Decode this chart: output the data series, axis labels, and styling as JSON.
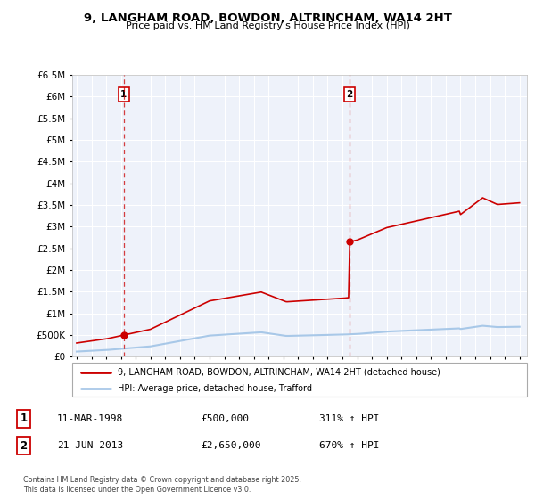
{
  "title": "9, LANGHAM ROAD, BOWDON, ALTRINCHAM, WA14 2HT",
  "subtitle": "Price paid vs. HM Land Registry's House Price Index (HPI)",
  "legend_line1": "9, LANGHAM ROAD, BOWDON, ALTRINCHAM, WA14 2HT (detached house)",
  "legend_line2": "HPI: Average price, detached house, Trafford",
  "annotation1_date": "11-MAR-1998",
  "annotation1_price": "£500,000",
  "annotation1_hpi": "311% ↑ HPI",
  "annotation2_date": "21-JUN-2013",
  "annotation2_price": "£2,650,000",
  "annotation2_hpi": "670% ↑ HPI",
  "footer_line1": "Contains HM Land Registry data © Crown copyright and database right 2025.",
  "footer_line2": "This data is licensed under the Open Government Licence v3.0.",
  "hpi_color": "#a8c8e8",
  "price_color": "#cc0000",
  "background_color": "#eef2fa",
  "grid_color": "#ffffff",
  "ylim": [
    0,
    6500000
  ],
  "yticks": [
    0,
    500000,
    1000000,
    1500000,
    2000000,
    2500000,
    3000000,
    3500000,
    4000000,
    4500000,
    5000000,
    5500000,
    6000000,
    6500000
  ],
  "xticks": [
    1995,
    1996,
    1997,
    1998,
    1999,
    2000,
    2001,
    2002,
    2003,
    2004,
    2005,
    2006,
    2007,
    2008,
    2009,
    2010,
    2011,
    2012,
    2013,
    2014,
    2015,
    2016,
    2017,
    2018,
    2019,
    2020,
    2021,
    2022,
    2023,
    2024,
    2025
  ],
  "xlim_start": 1994.7,
  "xlim_end": 2025.5,
  "sale1_x": 1998.19,
  "sale1_y": 500000,
  "sale2_x": 2013.47,
  "sale2_y": 2650000
}
